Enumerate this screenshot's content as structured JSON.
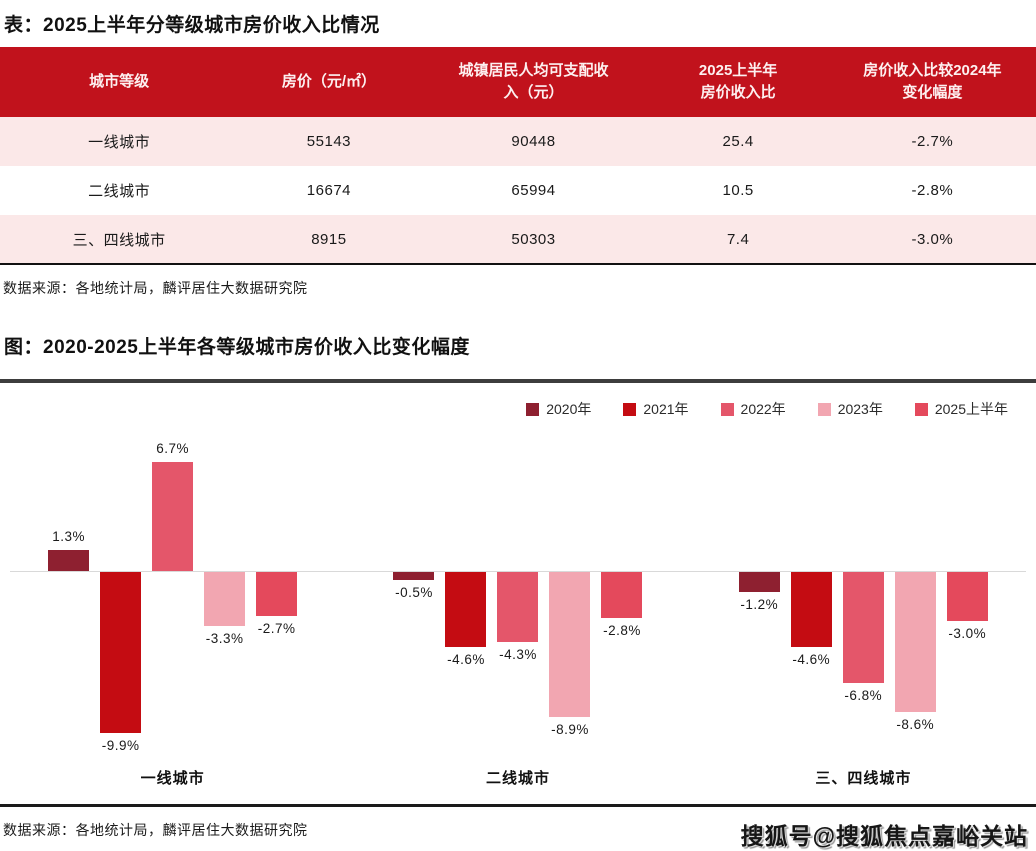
{
  "table_section": {
    "title": "表：2025上半年分等级城市房价收入比情况",
    "columns": [
      "城市等级",
      "房价（元/㎡）",
      "城镇居民人均可支配收\n入（元）",
      "2025上半年\n房价收入比",
      "房价收入比较2024年\n变化幅度"
    ],
    "rows": [
      [
        "一线城市",
        "55143",
        "90448",
        "25.4",
        "-2.7%"
      ],
      [
        "二线城市",
        "16674",
        "65994",
        "10.5",
        "-2.8%"
      ],
      [
        "三、四线城市",
        "8915",
        "50303",
        "7.4",
        "-3.0%"
      ]
    ],
    "source": "数据来源：各地统计局，麟评居住大数据研究院"
  },
  "chart_section": {
    "title": "图：2020-2025上半年各等级城市房价收入比变化幅度",
    "source": "数据来源：各地统计局，麟评居住大数据研究院"
  },
  "chart_data": {
    "type": "bar",
    "title": "2020-2025上半年各等级城市房价收入比变化幅度",
    "categories": [
      "一线城市",
      "二线城市",
      "三、四线城市"
    ],
    "series": [
      {
        "name": "2020年",
        "color": "#8E2030",
        "values": [
          1.3,
          -0.5,
          -1.2
        ]
      },
      {
        "name": "2021年",
        "color": "#C40C12",
        "values": [
          -9.9,
          -4.6,
          -4.6
        ]
      },
      {
        "name": "2022年",
        "color": "#E4566A",
        "values": [
          6.7,
          -4.3,
          -6.8
        ]
      },
      {
        "name": "2023年",
        "color": "#F2A6B1",
        "values": [
          -3.3,
          -8.9,
          -8.6
        ]
      },
      {
        "name": "2025上半年",
        "color": "#E4495C",
        "values": [
          -2.7,
          -2.8,
          -3.0
        ]
      }
    ],
    "value_label_format": "0.0%",
    "ylim": [
      -11,
      8
    ],
    "grid": false,
    "legend_position": "top-right",
    "baseline_color": "#d9d9d9"
  },
  "watermark": "搜狐号@搜狐焦点嘉峪关站"
}
